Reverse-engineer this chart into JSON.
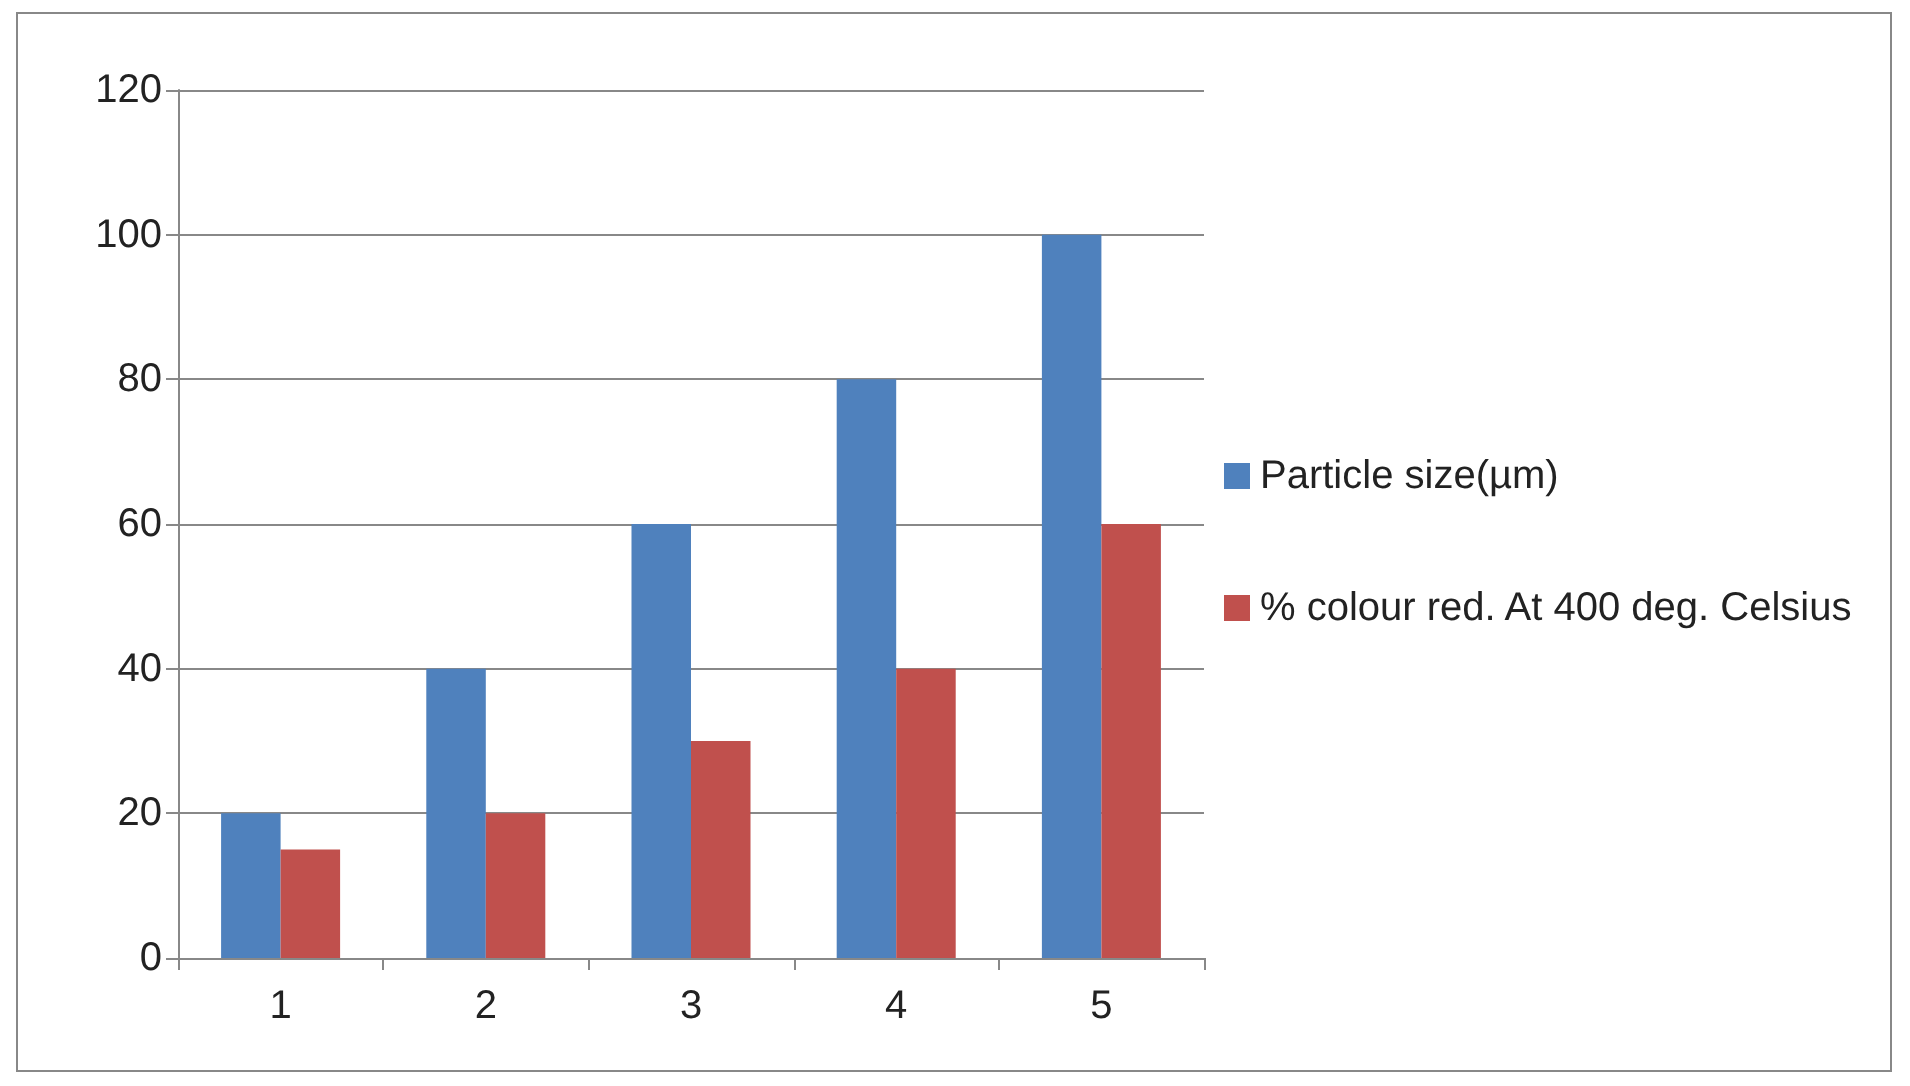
{
  "chart_data": {
    "type": "bar",
    "categories": [
      "1",
      "2",
      "3",
      "4",
      "5"
    ],
    "series": [
      {
        "name": "Particle size(µm)",
        "color": "#4f81bd",
        "values": [
          20,
          40,
          60,
          80,
          100
        ]
      },
      {
        "name": "% colour red. At 400 deg. Celsius",
        "color": "#c0504d",
        "values": [
          15,
          20,
          30,
          40,
          60
        ]
      }
    ],
    "ylim": [
      0,
      120
    ],
    "yticks": [
      0,
      20,
      40,
      60,
      80,
      100,
      120
    ],
    "grid": "y",
    "legend": "right"
  }
}
